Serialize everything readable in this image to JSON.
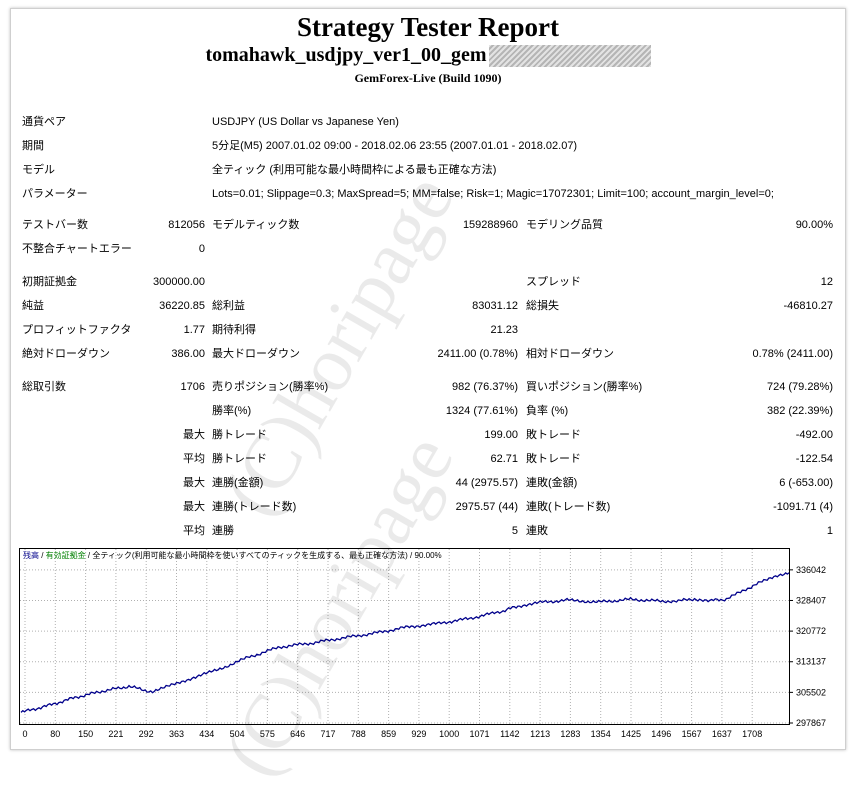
{
  "header": {
    "title": "Strategy Tester Report",
    "subtitle": "tomahawk_usdjpy_ver1_00_gem",
    "build": "GemForex-Live (Build 1090)"
  },
  "info": [
    {
      "label": "通貨ペア",
      "value": "USDJPY (US Dollar vs Japanese Yen)"
    },
    {
      "label": "期間",
      "value": "5分足(M5) 2007.01.02 09:00 - 2018.02.06 23:55 (2007.01.01 - 2018.02.07)"
    },
    {
      "label": "モデル",
      "value": "全ティック (利用可能な最小時間枠による最も正確な方法)"
    },
    {
      "label": "パラメーター",
      "value": "Lots=0.01; Slippage=0.3; MaxSpread=5; MM=false; Risk=1; Magic=17072301; Limit=100; account_margin_level=0;"
    }
  ],
  "stats": {
    "bars_label": "テストバー数",
    "bars_value": "812056",
    "ticks_label": "モデルティック数",
    "ticks_value": "159288960",
    "quality_label": "モデリング品質",
    "quality_value": "90.00%",
    "errors_label": "不整合チャートエラー",
    "errors_value": "0",
    "deposit_label": "初期証拠金",
    "deposit_value": "300000.00",
    "spread_label": "スプレッド",
    "spread_value": "12",
    "net_label": "純益",
    "net_value": "36220.85",
    "gross_profit_label": "総利益",
    "gross_profit_value": "83031.12",
    "gross_loss_label": "総損失",
    "gross_loss_value": "-46810.27",
    "pf_label": "プロフィットファクタ",
    "pf_value": "1.77",
    "expected_label": "期待利得",
    "expected_value": "21.23",
    "abs_dd_label": "絶対ドローダウン",
    "abs_dd_value": "386.00",
    "max_dd_label": "最大ドローダウン",
    "max_dd_value": "2411.00 (0.78%)",
    "rel_dd_label": "相対ドローダウン",
    "rel_dd_value": "0.78% (2411.00)",
    "trades_label": "総取引数",
    "trades_value": "1706",
    "short_label": "売りポジション(勝率%)",
    "short_value": "982 (76.37%)",
    "long_label": "買いポジション(勝率%)",
    "long_value": "724 (79.28%)",
    "winrate_label": "勝率(%)",
    "winrate_value": "1324 (77.61%)",
    "lossrate_label": "負率 (%)",
    "lossrate_value": "382 (22.39%)",
    "max_prefix": "最大",
    "avg_prefix": "平均",
    "largest_win_label": "勝トレード",
    "largest_win_value": "199.00",
    "largest_loss_label": "敗トレード",
    "largest_loss_value": "-492.00",
    "avg_win_label": "勝トレード",
    "avg_win_value": "62.71",
    "avg_loss_label": "敗トレード",
    "avg_loss_value": "-122.54",
    "cons_wins_money_label": "連勝(金額)",
    "cons_wins_money_value": "44 (2975.57)",
    "cons_losses_money_label": "連敗(金額)",
    "cons_losses_money_value": "6 (-653.00)",
    "cons_profit_label": "連勝(トレード数)",
    "cons_profit_value": "2975.57 (44)",
    "cons_loss_label": "連敗(トレード数)",
    "cons_loss_value": "-1091.71 (4)",
    "avg_cons_wins_label": "連勝",
    "avg_cons_wins_value": "5",
    "avg_cons_losses_label": "連敗",
    "avg_cons_losses_value": "1"
  },
  "watermark": "(C)horipage",
  "chart_data": {
    "type": "line",
    "legend": {
      "balance": "残高",
      "sep1": " / ",
      "equity": "有効証拠金",
      "sep2": " / ",
      "model": "全ティック(利用可能な最小時間枠を使いすべてのティックを生成する、最も正確な方法)",
      "sep3": " / ",
      "quality": "90.00%"
    },
    "xlabels": [
      "0",
      "80",
      "150",
      "221",
      "292",
      "363",
      "434",
      "504",
      "575",
      "646",
      "717",
      "788",
      "859",
      "929",
      "1000",
      "1071",
      "1142",
      "1213",
      "1283",
      "1354",
      "1425",
      "1496",
      "1567",
      "1637",
      "1708"
    ],
    "ylabels": [
      "336042",
      "328407",
      "320772",
      "313137",
      "305502",
      "297867"
    ],
    "ylim": [
      297867,
      337000
    ],
    "xlim": [
      0,
      1706
    ],
    "series": [
      {
        "color": "#00008b",
        "x": [
          0,
          60,
          120,
          180,
          240,
          292,
          330,
          380,
          434,
          504,
          575,
          646,
          717,
          788,
          859,
          929,
          1000,
          1071,
          1100,
          1142,
          1213,
          1283,
          1354,
          1425,
          1460,
          1496,
          1530,
          1567,
          1610,
          1650,
          1680,
          1706
        ],
        "y": [
          300500,
          302200,
          304200,
          305800,
          307000,
          305600,
          307100,
          309100,
          311000,
          314200,
          316800,
          317800,
          319100,
          320300,
          321800,
          322700,
          324000,
          325800,
          326900,
          327800,
          328500,
          328000,
          328700,
          328200,
          328300,
          328800,
          328400,
          328700,
          331200,
          333300,
          334600,
          335300
        ]
      }
    ]
  }
}
